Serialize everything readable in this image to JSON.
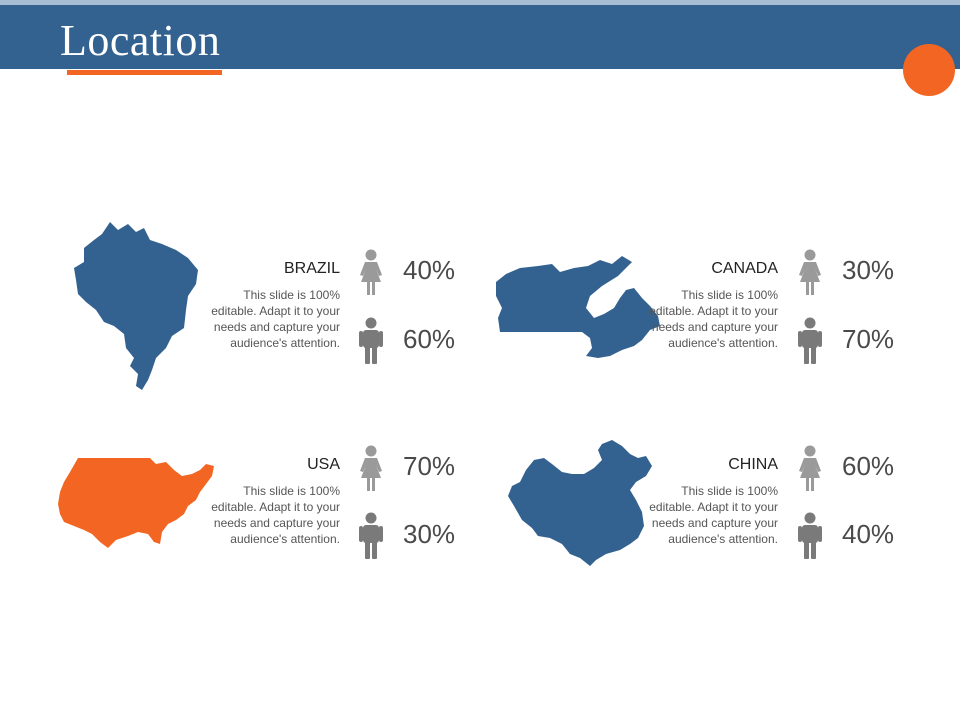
{
  "slide": {
    "title": "Location",
    "colors": {
      "header": "#336290",
      "accent": "#f26522",
      "map_blue": "#336290",
      "icon_gray": "#8c8c8c"
    }
  },
  "countries": [
    {
      "name": "BRAZIL",
      "description": "This slide is 100% editable. Adapt it to your needs and capture your audience's attention.",
      "female_pct": "40%",
      "male_pct": "60%",
      "map_icon": "brazil-map-icon",
      "map_color": "#336290"
    },
    {
      "name": "CANADA",
      "description": "This slide is 100% editable. Adapt it to your needs and capture your audience's attention.",
      "female_pct": "30%",
      "male_pct": "70%",
      "map_icon": "canada-map-icon",
      "map_color": "#336290"
    },
    {
      "name": "USA",
      "description": "This slide is 100% editable. Adapt it to your needs and capture your audience's attention.",
      "female_pct": "70%",
      "male_pct": "30%",
      "map_icon": "usa-map-icon",
      "map_color": "#f26522"
    },
    {
      "name": "CHINA",
      "description": "This slide is 100% editable. Adapt it to your needs and capture your audience's attention.",
      "female_pct": "60%",
      "male_pct": "40%",
      "map_icon": "china-map-icon",
      "map_color": "#336290"
    }
  ]
}
